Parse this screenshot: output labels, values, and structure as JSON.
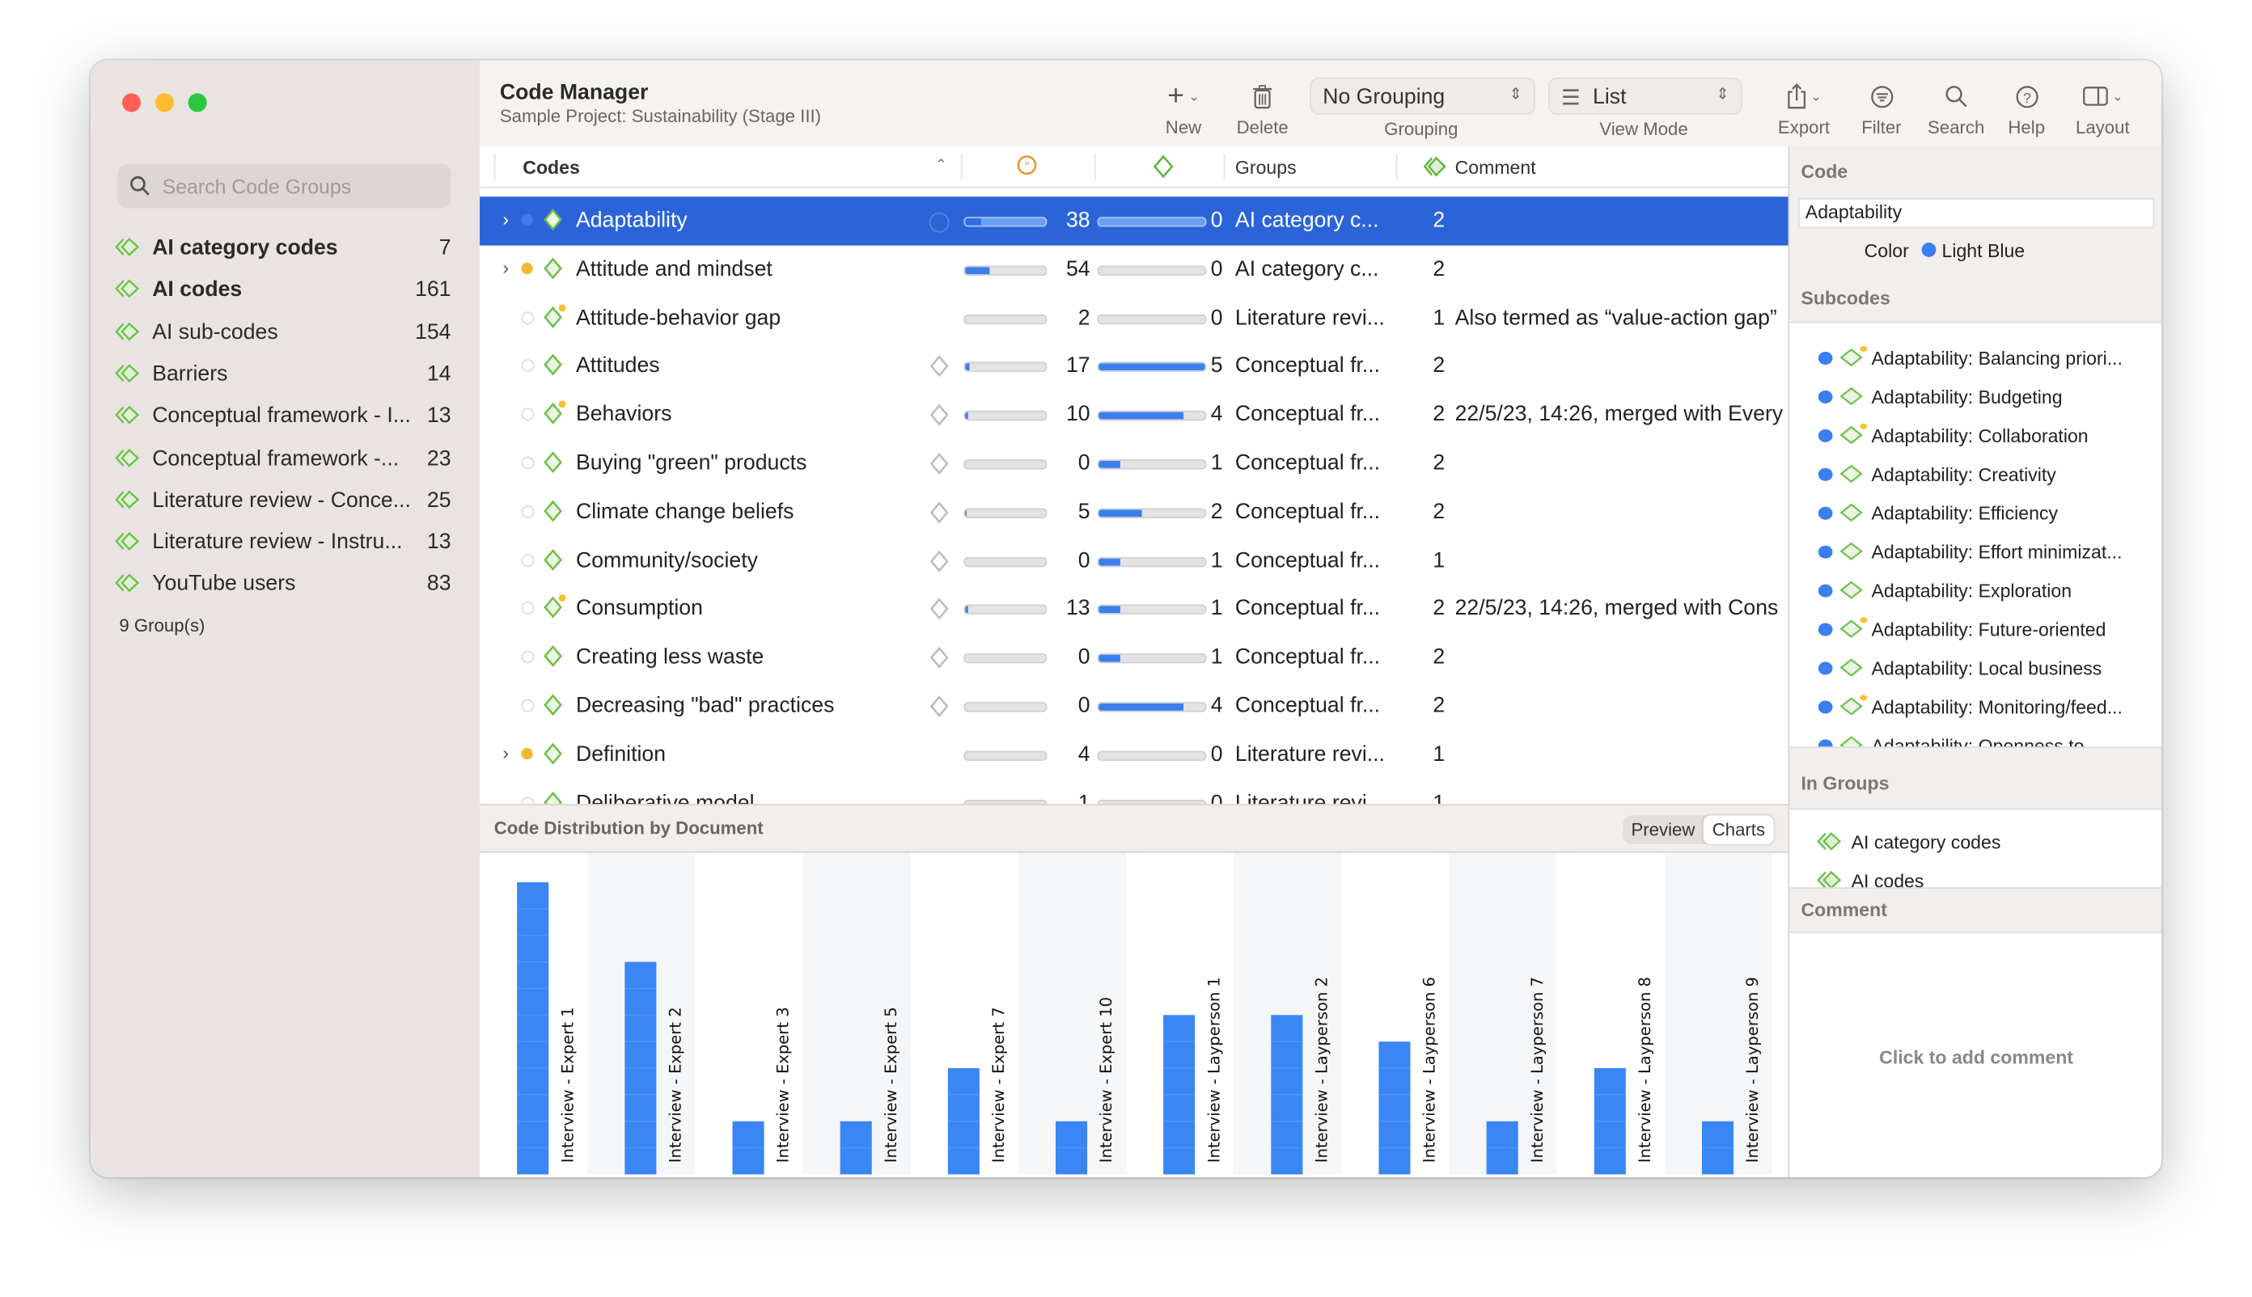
{
  "window": {
    "controls": [
      "close",
      "minimize",
      "zoom"
    ]
  },
  "sidebar": {
    "search_placeholder": "Search Code Groups",
    "items": [
      {
        "label": "AI category codes",
        "count": "7",
        "bold": true
      },
      {
        "label": "AI codes",
        "count": "161",
        "bold": true
      },
      {
        "label": "AI sub-codes",
        "count": "154"
      },
      {
        "label": "Barriers",
        "count": "14"
      },
      {
        "label": "Conceptual framework - I...",
        "count": "13"
      },
      {
        "label": "Conceptual framework -...",
        "count": "23"
      },
      {
        "label": "Literature review - Conce...",
        "count": "25"
      },
      {
        "label": "Literature review - Instru...",
        "count": "13"
      },
      {
        "label": "YouTube users",
        "count": "83"
      }
    ],
    "footer": "9 Group(s)"
  },
  "header": {
    "title": "Code Manager",
    "subtitle": "Sample Project: Sustainability (Stage III)"
  },
  "toolbar": {
    "new": "New",
    "delete": "Delete",
    "grouping_label": "Grouping",
    "grouping_value": "No Grouping",
    "viewmode_label": "View Mode",
    "viewmode_value": "List",
    "export": "Export",
    "filter": "Filter",
    "search": "Search",
    "help": "Help",
    "layout": "Layout"
  },
  "table": {
    "columns": {
      "codes": "Codes",
      "groups": "Groups",
      "comment": "Comment"
    },
    "rows": [
      {
        "name": "Adaptability",
        "expand": true,
        "dot": "#3a7ff0",
        "memo": false,
        "bar1": 20,
        "count": "38",
        "bar2": 0,
        "count2": "0",
        "group": "AI category c...",
        "gcount": "2",
        "comment": "",
        "selected": true
      },
      {
        "name": "Attitude and mindset",
        "expand": true,
        "dot": "#f2b92b",
        "memo": false,
        "bar1": 30,
        "count": "54",
        "bar2": 0,
        "count2": "0",
        "group": "AI category c...",
        "gcount": "2",
        "comment": ""
      },
      {
        "name": "Attitude-behavior gap",
        "expand": false,
        "dot": "",
        "memo": false,
        "bar1": 0,
        "count": "2",
        "bar2": 0,
        "count2": "0",
        "group": "Literature revi...",
        "gcount": "1",
        "comment": "Also termed as “value-action gap”",
        "note": true
      },
      {
        "name": "Attitudes",
        "expand": false,
        "dot": "",
        "memo": true,
        "bar1": 5,
        "count": "17",
        "bar2": 100,
        "count2": "5",
        "group": "Conceptual fr...",
        "gcount": "2",
        "comment": ""
      },
      {
        "name": "Behaviors",
        "expand": false,
        "dot": "",
        "memo": true,
        "bar1": 3,
        "count": "10",
        "bar2": 80,
        "count2": "4",
        "group": "Conceptual fr...",
        "gcount": "2",
        "comment": "22/5/23, 14:26, merged with Every",
        "note": true
      },
      {
        "name": "Buying \"green\" products",
        "expand": false,
        "dot": "",
        "memo": true,
        "bar1": 0,
        "count": "0",
        "bar2": 20,
        "count2": "1",
        "group": "Conceptual fr...",
        "gcount": "2",
        "comment": ""
      },
      {
        "name": "Climate change beliefs",
        "expand": false,
        "dot": "",
        "memo": true,
        "bar1": 2,
        "count": "5",
        "bar2": 40,
        "count2": "2",
        "group": "Conceptual fr...",
        "gcount": "2",
        "comment": ""
      },
      {
        "name": "Community/society",
        "expand": false,
        "dot": "",
        "memo": true,
        "bar1": 0,
        "count": "0",
        "bar2": 20,
        "count2": "1",
        "group": "Conceptual fr...",
        "gcount": "1",
        "comment": ""
      },
      {
        "name": "Consumption",
        "expand": false,
        "dot": "",
        "memo": true,
        "bar1": 4,
        "count": "13",
        "bar2": 20,
        "count2": "1",
        "group": "Conceptual fr...",
        "gcount": "2",
        "comment": "22/5/23, 14:26, merged with Cons",
        "note": true
      },
      {
        "name": "Creating less waste",
        "expand": false,
        "dot": "",
        "memo": true,
        "bar1": 0,
        "count": "0",
        "bar2": 20,
        "count2": "1",
        "group": "Conceptual fr...",
        "gcount": "2",
        "comment": ""
      },
      {
        "name": "Decreasing \"bad\" practices",
        "expand": false,
        "dot": "",
        "memo": true,
        "bar1": 0,
        "count": "0",
        "bar2": 80,
        "count2": "4",
        "group": "Conceptual fr...",
        "gcount": "2",
        "comment": ""
      },
      {
        "name": "Definition",
        "expand": true,
        "dot": "#f2b92b",
        "memo": false,
        "bar1": 0,
        "count": "4",
        "bar2": 0,
        "count2": "0",
        "group": "Literature revi...",
        "gcount": "1",
        "comment": ""
      },
      {
        "name": "Deliberative model",
        "expand": false,
        "dot": "",
        "memo": false,
        "bar1": 0,
        "count": "1",
        "bar2": 0,
        "count2": "0",
        "group": "Literature revi...",
        "gcount": "1",
        "comment": ""
      }
    ]
  },
  "distribution": {
    "title": "Code Distribution by Document",
    "tabs": [
      "Preview",
      "Charts"
    ],
    "active_tab": "Charts"
  },
  "chart_data": {
    "type": "bar",
    "categories": [
      "Interview - Expert 1",
      "Interview - Expert 2",
      "Interview - Expert 3",
      "Interview - Expert 5",
      "Interview - Expert 7",
      "Interview - Expert 10",
      "Interview - Layperson 1",
      "Interview - Layperson 2",
      "Interview - Layperson 6",
      "Interview - Layperson 7",
      "Interview - Layperson 8",
      "Interview - Layperson 9"
    ],
    "values": [
      11,
      8,
      2,
      2,
      4,
      2,
      6,
      6,
      5,
      2,
      4,
      2
    ],
    "color": "#3a86f5",
    "grid": true
  },
  "inspector": {
    "code_heading": "Code",
    "code_name": "Adaptability",
    "color_label": "Color",
    "color_value": "Light Blue",
    "color_hex": "#3a7ff0",
    "subcodes_heading": "Subcodes",
    "subcodes": [
      {
        "label": "Adaptability: Balancing priori...",
        "note": true
      },
      {
        "label": "Adaptability: Budgeting"
      },
      {
        "label": "Adaptability: Collaboration",
        "note": true
      },
      {
        "label": "Adaptability: Creativity"
      },
      {
        "label": "Adaptability: Efficiency"
      },
      {
        "label": "Adaptability: Effort minimizat..."
      },
      {
        "label": "Adaptability: Exploration"
      },
      {
        "label": "Adaptability: Future-oriented",
        "note": true
      },
      {
        "label": "Adaptability: Local business"
      },
      {
        "label": "Adaptability: Monitoring/feed...",
        "note": true
      },
      {
        "label": "Adaptability: Openness to..."
      }
    ],
    "groups_heading": "In Groups",
    "groups": [
      "AI category codes",
      "AI codes"
    ],
    "comment_heading": "Comment",
    "comment_placeholder": "Click to add comment"
  }
}
